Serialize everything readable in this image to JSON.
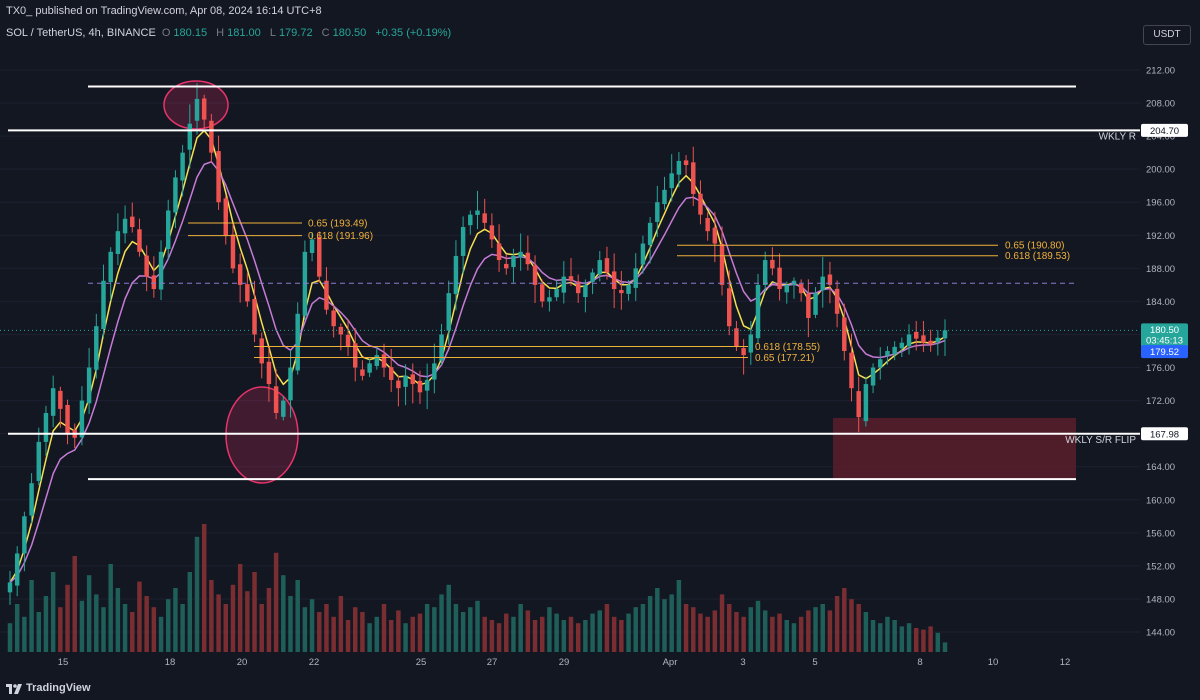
{
  "header": {
    "published_text": "TX0_ published on TradingView.com, Apr 08, 2024 16:14 UTC+8"
  },
  "symbol_bar": {
    "symbol": "SOL / TetherUS, 4h, BINANCE",
    "open_label": "O",
    "open": "180.15",
    "high_label": "H",
    "high": "181.00",
    "low_label": "L",
    "low": "179.72",
    "close_label": "C",
    "close": "180.50",
    "change": "+0.35 (+0.19%)"
  },
  "currency_button": "USDT",
  "colors": {
    "background": "#131722",
    "up": "#26a69a",
    "down": "#ef5350",
    "ema_fast": "#f5e050",
    "ema_slow": "#c67bd6",
    "fib": "#f0b13a",
    "zone": "#5a1f2a",
    "ellipse": "#e8336b"
  },
  "price_axis": {
    "ticks": [
      "212.00",
      "208.00",
      "204.00",
      "200.00",
      "196.00",
      "192.00",
      "188.00",
      "184.00",
      "180.00",
      "176.00",
      "172.00",
      "168.00",
      "164.00",
      "160.00",
      "156.00",
      "152.00",
      "148.00",
      "144.00"
    ],
    "tick_values": [
      212,
      208,
      204,
      200,
      196,
      192,
      188,
      184,
      180,
      176,
      172,
      168,
      164,
      160,
      156,
      152,
      148,
      144
    ]
  },
  "price_badges": {
    "last": "180.50",
    "countdown": "03:45:13",
    "ema_value": "179.52",
    "weekly_resistance": "204.70",
    "weekly_flip": "167.98"
  },
  "time_axis": [
    "15",
    "18",
    "20",
    "22",
    "25",
    "27",
    "29",
    "Apr",
    "3",
    "5",
    "8",
    "10",
    "12"
  ],
  "annotations": {
    "weekly_r": "WKLY R",
    "weekly_flip": "WKLY S/R FLIP",
    "fib1_a": "0.65 (193.49)",
    "fib1_b": "0.618 (191.96)",
    "fib2_a": "0.618 (178.55)",
    "fib2_b": "0.65 (177.21)",
    "fib3_a": "0.65 (190.80)",
    "fib3_b": "0.618 (189.53)"
  },
  "chart_data": {
    "type": "candlestick",
    "symbol": "SOL / TetherUS",
    "interval": "4h",
    "price_range": [
      141.5,
      214.0
    ],
    "levels": [
      {
        "name": "WKLY R",
        "price": 204.7
      },
      {
        "name": "WKLY S/R FLIP",
        "price": 167.98
      },
      {
        "name": "top",
        "price": 210.0
      },
      {
        "name": "bottom",
        "price": 162.5
      }
    ],
    "fib_levels": [
      {
        "label": "0.65 (193.49)",
        "price": 193.49
      },
      {
        "label": "0.618 (191.96)",
        "price": 191.96
      },
      {
        "label": "0.618 (178.55)",
        "price": 178.55
      },
      {
        "label": "0.65 (177.21)",
        "price": 177.21
      },
      {
        "label": "0.65 (190.80)",
        "price": 190.8
      },
      {
        "label": "0.618 (189.53)",
        "price": 189.53
      }
    ],
    "mid_level": 186.2,
    "demand_zone": {
      "top": 169.9,
      "bottom": 162.5
    },
    "close_path": [
      150.0,
      153.5,
      158.0,
      162.0,
      167.0,
      170.5,
      173.5,
      171.0,
      168.0,
      167.5,
      172.0,
      176.0,
      181.0,
      186.5,
      190.0,
      192.5,
      194.0,
      193.0,
      190.0,
      187.0,
      185.5,
      190.0,
      195.0,
      199.0,
      202.0,
      205.5,
      208.5,
      206.0,
      202.0,
      196.0,
      192.0,
      188.0,
      186.0,
      184.0,
      180.0,
      176.5,
      174.0,
      170.5,
      172.0,
      176.0,
      182.5,
      190.0,
      191.5,
      187.0,
      183.0,
      181.0,
      180.0,
      178.5,
      176.0,
      175.0,
      176.5,
      177.5,
      176.0,
      174.5,
      173.5,
      175.0,
      174.0,
      173.0,
      174.5,
      176.5,
      180.0,
      185.0,
      189.5,
      193.0,
      194.5,
      195.0,
      193.5,
      191.5,
      189.0,
      188.0,
      189.5,
      190.0,
      188.5,
      186.0,
      184.0,
      184.5,
      185.5,
      187.0,
      186.5,
      185.0,
      186.0,
      187.5,
      189.0,
      187.5,
      185.5,
      185.0,
      186.0,
      188.0,
      191.0,
      193.5,
      196.0,
      197.5,
      199.5,
      201.0,
      200.5,
      197.0,
      194.5,
      192.5,
      191.0,
      186.0,
      181.0,
      178.5,
      177.5,
      180.0,
      186.0,
      189.0,
      188.0,
      185.5,
      186.0,
      186.5,
      185.0,
      182.0,
      185.0,
      187.0,
      186.0,
      182.5,
      178.0,
      173.5,
      170.0,
      174.0,
      176.0,
      177.0,
      178.0,
      178.5,
      179.0,
      180.0,
      179.5,
      179.0,
      178.8,
      179.6,
      180.5
    ],
    "volume_relative": [
      0.18,
      0.3,
      0.22,
      0.45,
      0.25,
      0.35,
      0.5,
      0.28,
      0.42,
      0.6,
      0.32,
      0.48,
      0.36,
      0.28,
      0.55,
      0.4,
      0.3,
      0.25,
      0.44,
      0.35,
      0.28,
      0.22,
      0.33,
      0.4,
      0.3,
      0.5,
      0.72,
      0.8,
      0.45,
      0.36,
      0.3,
      0.42,
      0.55,
      0.38,
      0.5,
      0.3,
      0.4,
      0.62,
      0.48,
      0.35,
      0.45,
      0.28,
      0.33,
      0.25,
      0.3,
      0.22,
      0.35,
      0.2,
      0.28,
      0.25,
      0.18,
      0.22,
      0.3,
      0.2,
      0.26,
      0.18,
      0.22,
      0.24,
      0.3,
      0.28,
      0.36,
      0.42,
      0.3,
      0.25,
      0.28,
      0.32,
      0.22,
      0.2,
      0.18,
      0.24,
      0.22,
      0.3,
      0.26,
      0.2,
      0.22,
      0.28,
      0.24,
      0.2,
      0.22,
      0.18,
      0.2,
      0.24,
      0.26,
      0.3,
      0.22,
      0.2,
      0.24,
      0.28,
      0.3,
      0.35,
      0.4,
      0.33,
      0.36,
      0.45,
      0.3,
      0.28,
      0.24,
      0.22,
      0.26,
      0.36,
      0.3,
      0.25,
      0.22,
      0.28,
      0.32,
      0.26,
      0.22,
      0.24,
      0.2,
      0.18,
      0.22,
      0.26,
      0.28,
      0.3,
      0.26,
      0.35,
      0.4,
      0.33,
      0.3,
      0.25,
      0.2,
      0.18,
      0.22,
      0.2,
      0.16,
      0.18,
      0.15,
      0.14,
      0.16,
      0.12,
      0.06
    ]
  }
}
